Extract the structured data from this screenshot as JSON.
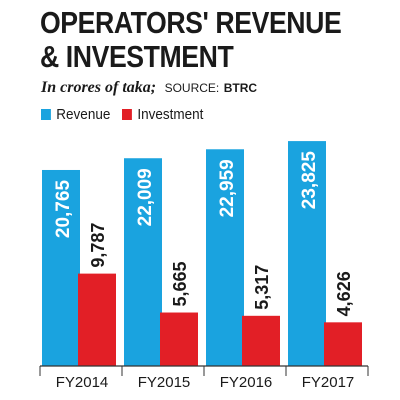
{
  "title_line1": "OPERATORS' REVENUE",
  "title_line2": "& INVESTMENT",
  "subtitle_units": "In crores of taka;",
  "source_label": "SOURCE:",
  "source_name": "BTRC",
  "colors": {
    "revenue": "#1aa3df",
    "investment": "#e21f26",
    "axis": "#333333",
    "text": "#1a1a1a",
    "label_on_bar": "#ffffff"
  },
  "chart_data": {
    "type": "bar",
    "categories": [
      "FY2014",
      "FY2015",
      "FY2016",
      "FY2017"
    ],
    "series": [
      {
        "name": "Revenue",
        "values": [
          20765,
          22009,
          22959,
          23825
        ],
        "labels": [
          "20,765",
          "22,009",
          "22,959",
          "23,825"
        ]
      },
      {
        "name": "Investment",
        "values": [
          9787,
          5665,
          5317,
          4626
        ],
        "labels": [
          "9,787",
          "5,665",
          "5,317",
          "4,626"
        ]
      }
    ],
    "ylim": [
      0,
      25000
    ],
    "grid": false,
    "legend": "top-left"
  }
}
